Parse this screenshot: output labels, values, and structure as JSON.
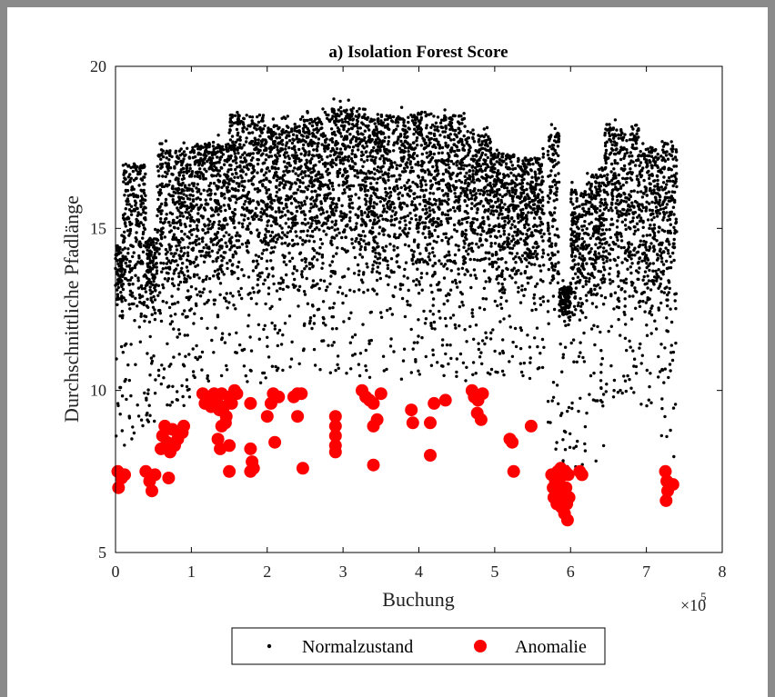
{
  "chart_data": {
    "type": "scatter",
    "title": "a) Isolation Forest Score",
    "xlabel": "Buchung",
    "ylabel": "Durchschnittliche Pfadlänge",
    "x_multiplier_base": "×10",
    "x_multiplier_exp": "5",
    "xlim": [
      0,
      800000
    ],
    "ylim": [
      5,
      20
    ],
    "xticks": [
      0,
      100000,
      200000,
      300000,
      400000,
      500000,
      600000,
      700000,
      800000
    ],
    "xtick_labels": [
      "0",
      "1",
      "2",
      "3",
      "4",
      "5",
      "6",
      "7",
      "8"
    ],
    "yticks": [
      5,
      10,
      15,
      20
    ],
    "ytick_labels": [
      "5",
      "10",
      "15",
      "20"
    ],
    "grid": false,
    "legend_position": "bottom-outside",
    "normal_color": "#000000",
    "anomaly_color": "#ff0000",
    "series": [
      {
        "name": "Normalzustand",
        "marker": "dot",
        "bands": [
          {
            "x_start": 0,
            "x_end": 10000,
            "y_low": 8.0,
            "y_high": 14.8
          },
          {
            "x_start": 10000,
            "x_end": 40000,
            "y_low": 8.2,
            "y_high": 17.3
          },
          {
            "x_start": 40000,
            "x_end": 55000,
            "y_low": 8.8,
            "y_high": 15.0
          },
          {
            "x_start": 55000,
            "x_end": 100000,
            "y_low": 9.5,
            "y_high": 17.7
          },
          {
            "x_start": 100000,
            "x_end": 150000,
            "y_low": 10.0,
            "y_high": 17.9
          },
          {
            "x_start": 150000,
            "x_end": 195000,
            "y_low": 10.2,
            "y_high": 18.8
          },
          {
            "x_start": 195000,
            "x_end": 240000,
            "y_low": 10.3,
            "y_high": 18.5
          },
          {
            "x_start": 240000,
            "x_end": 285000,
            "y_low": 10.3,
            "y_high": 18.7
          },
          {
            "x_start": 285000,
            "x_end": 330000,
            "y_low": 10.4,
            "y_high": 19.0
          },
          {
            "x_start": 330000,
            "x_end": 380000,
            "y_low": 10.3,
            "y_high": 18.8
          },
          {
            "x_start": 380000,
            "x_end": 420000,
            "y_low": 10.3,
            "y_high": 18.9
          },
          {
            "x_start": 420000,
            "x_end": 460000,
            "y_low": 10.3,
            "y_high": 18.8
          },
          {
            "x_start": 460000,
            "x_end": 495000,
            "y_low": 10.3,
            "y_high": 18.2
          },
          {
            "x_start": 495000,
            "x_end": 530000,
            "y_low": 10.3,
            "y_high": 17.6
          },
          {
            "x_start": 530000,
            "x_end": 565000,
            "y_low": 10.2,
            "y_high": 17.5
          },
          {
            "x_start": 570000,
            "x_end": 585000,
            "y_low": 7.5,
            "y_high": 18.3
          },
          {
            "x_start": 585000,
            "x_end": 600000,
            "y_low": 6.8,
            "y_high": 13.5
          },
          {
            "x_start": 600000,
            "x_end": 620000,
            "y_low": 7.5,
            "y_high": 16.5
          },
          {
            "x_start": 620000,
            "x_end": 645000,
            "y_low": 7.8,
            "y_high": 17.0
          },
          {
            "x_start": 645000,
            "x_end": 690000,
            "y_low": 9.8,
            "y_high": 18.4
          },
          {
            "x_start": 690000,
            "x_end": 720000,
            "y_low": 9.5,
            "y_high": 17.8
          },
          {
            "x_start": 720000,
            "x_end": 740000,
            "y_low": 7.5,
            "y_high": 18.0
          }
        ]
      },
      {
        "name": "Anomalie",
        "marker": "circle",
        "points": [
          [
            3000,
            7.5
          ],
          [
            4000,
            7.0
          ],
          [
            8000,
            7.3
          ],
          [
            12000,
            7.4
          ],
          [
            40000,
            7.5
          ],
          [
            45000,
            7.2
          ],
          [
            48000,
            6.9
          ],
          [
            52000,
            7.4
          ],
          [
            60000,
            8.2
          ],
          [
            62000,
            8.6
          ],
          [
            65000,
            8.9
          ],
          [
            68000,
            8.4
          ],
          [
            72000,
            8.1
          ],
          [
            75000,
            8.8
          ],
          [
            78000,
            8.3
          ],
          [
            82000,
            8.5
          ],
          [
            88000,
            8.7
          ],
          [
            90000,
            8.9
          ],
          [
            70000,
            7.3
          ],
          [
            115000,
            9.9
          ],
          [
            118000,
            9.6
          ],
          [
            122000,
            9.8
          ],
          [
            126000,
            9.5
          ],
          [
            130000,
            9.9
          ],
          [
            133000,
            9.7
          ],
          [
            137000,
            9.4
          ],
          [
            140000,
            9.9
          ],
          [
            143000,
            9.5
          ],
          [
            146000,
            9.2
          ],
          [
            150000,
            9.8
          ],
          [
            153000,
            9.6
          ],
          [
            157000,
            10.0
          ],
          [
            160000,
            9.9
          ],
          [
            135000,
            8.5
          ],
          [
            138000,
            8.2
          ],
          [
            150000,
            8.3
          ],
          [
            140000,
            8.9
          ],
          [
            145000,
            9.0
          ],
          [
            150000,
            7.5
          ],
          [
            178000,
            8.2
          ],
          [
            180000,
            7.8
          ],
          [
            182000,
            7.6
          ],
          [
            178000,
            7.5
          ],
          [
            178000,
            9.6
          ],
          [
            200000,
            9.2
          ],
          [
            205000,
            9.6
          ],
          [
            208000,
            9.9
          ],
          [
            215000,
            9.8
          ],
          [
            210000,
            8.4
          ],
          [
            235000,
            9.8
          ],
          [
            240000,
            9.9
          ],
          [
            245000,
            9.9
          ],
          [
            240000,
            9.2
          ],
          [
            247000,
            7.6
          ],
          [
            290000,
            9.2
          ],
          [
            290000,
            8.9
          ],
          [
            290000,
            8.6
          ],
          [
            290000,
            8.3
          ],
          [
            290000,
            8.1
          ],
          [
            325000,
            10.0
          ],
          [
            330000,
            9.8
          ],
          [
            335000,
            9.7
          ],
          [
            340000,
            9.6
          ],
          [
            350000,
            9.9
          ],
          [
            345000,
            9.1
          ],
          [
            340000,
            8.9
          ],
          [
            340000,
            7.7
          ],
          [
            390000,
            9.4
          ],
          [
            392000,
            9.0
          ],
          [
            415000,
            9.0
          ],
          [
            420000,
            9.6
          ],
          [
            435000,
            9.7
          ],
          [
            415000,
            8.0
          ],
          [
            470000,
            10.0
          ],
          [
            473000,
            9.8
          ],
          [
            478000,
            9.7
          ],
          [
            484000,
            9.9
          ],
          [
            477000,
            9.3
          ],
          [
            482000,
            9.1
          ],
          [
            520000,
            8.5
          ],
          [
            523000,
            8.4
          ],
          [
            548000,
            8.9
          ],
          [
            525000,
            7.5
          ],
          [
            575000,
            7.4
          ],
          [
            577000,
            7.0
          ],
          [
            578000,
            6.7
          ],
          [
            580000,
            7.2
          ],
          [
            582000,
            6.5
          ],
          [
            584000,
            6.9
          ],
          [
            586000,
            7.3
          ],
          [
            588000,
            6.4
          ],
          [
            590000,
            6.8
          ],
          [
            592000,
            6.2
          ],
          [
            594000,
            7.0
          ],
          [
            595000,
            6.5
          ],
          [
            596000,
            6.0
          ],
          [
            598000,
            6.7
          ],
          [
            597000,
            7.4
          ],
          [
            593000,
            7.5
          ],
          [
            587000,
            7.6
          ],
          [
            583000,
            7.5
          ],
          [
            612000,
            7.5
          ],
          [
            615000,
            7.4
          ],
          [
            725000,
            7.5
          ],
          [
            727000,
            7.2
          ],
          [
            728000,
            6.9
          ],
          [
            726000,
            6.6
          ],
          [
            735000,
            7.1
          ]
        ]
      }
    ]
  }
}
